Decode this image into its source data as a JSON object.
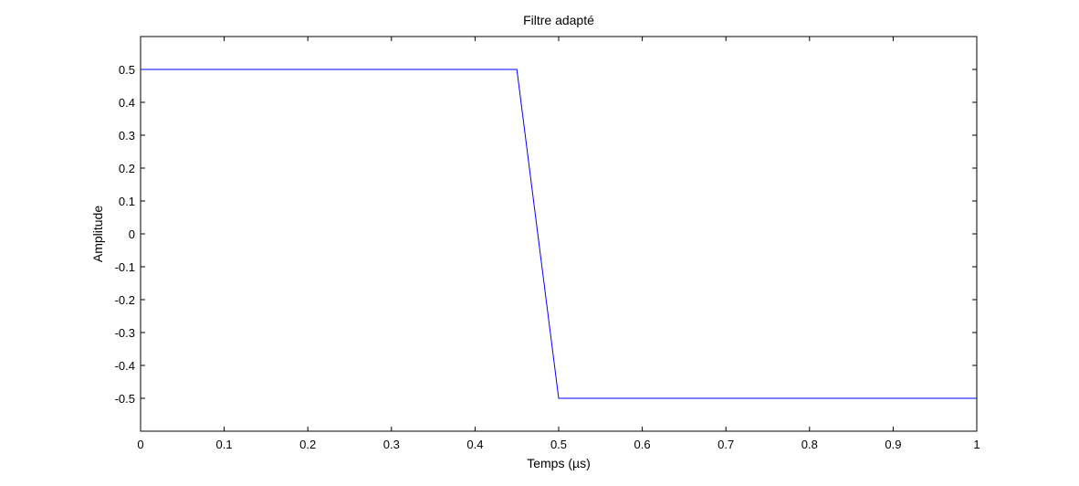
{
  "chart_data": {
    "type": "line",
    "title": "Filtre adapté",
    "xlabel": "Temps (µs)",
    "ylabel": "Amplitude",
    "xlim": [
      0,
      1
    ],
    "ylim": [
      -0.6,
      0.6
    ],
    "x_ticks": [
      0,
      0.1,
      0.2,
      0.3,
      0.4,
      0.5,
      0.6,
      0.7,
      0.8,
      0.9,
      1
    ],
    "x_tick_labels": [
      "0",
      "0.1",
      "0.2",
      "0.3",
      "0.4",
      "0.5",
      "0.6",
      "0.7",
      "0.8",
      "0.9",
      "1"
    ],
    "y_ticks": [
      0.5,
      0.4,
      0.3,
      0.2,
      0.1,
      0,
      -0.1,
      -0.2,
      -0.3,
      -0.4,
      -0.5
    ],
    "y_tick_labels": [
      "0.5",
      "0.4",
      "0.3",
      "0.2",
      "0.1",
      "0",
      "-0.1",
      "-0.2",
      "-0.3",
      "-0.4",
      "-0.5"
    ],
    "grid": false,
    "series": [
      {
        "color": "#0000ff",
        "x": [
          0,
          0.45,
          0.5,
          1
        ],
        "y": [
          0.5,
          0.5,
          -0.5,
          -0.5
        ]
      }
    ]
  }
}
